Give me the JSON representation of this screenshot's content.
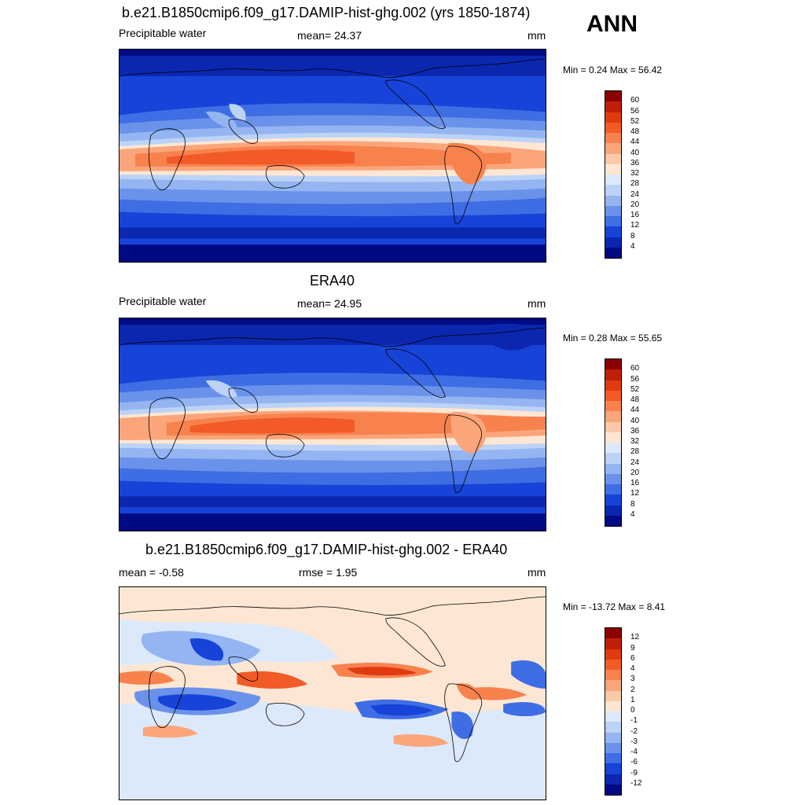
{
  "season": "ANN",
  "panels": [
    {
      "title": "b.e21.B1850cmip6.f09_g17.DAMIP-hist-ghg.002 (yrs 1850-1874)",
      "left_label": "Precipitable water",
      "center_label": "mean=  24.37",
      "units": "mm",
      "minmax": "Min =   0.24 Max =  56.42",
      "colorbar": {
        "labels": [
          "60",
          "56",
          "52",
          "48",
          "44",
          "40",
          "36",
          "32",
          "28",
          "24",
          "20",
          "16",
          "12",
          "8",
          "4"
        ],
        "colors": [
          "#8b0000",
          "#c0200a",
          "#e03a10",
          "#f25a28",
          "#f7824e",
          "#fba57a",
          "#fccaa8",
          "#fde7d4",
          "#dce9fb",
          "#bcd3f7",
          "#94b5f1",
          "#6a92ea",
          "#3f6de3",
          "#1743d8",
          "#0b27b0",
          "#000a82"
        ]
      }
    },
    {
      "title": "ERA40",
      "left_label": "Precipitable water",
      "center_label": "mean=  24.95",
      "units": "mm",
      "minmax": "Min =   0.28 Max =  55.65",
      "colorbar": {
        "labels": [
          "60",
          "56",
          "52",
          "48",
          "44",
          "40",
          "36",
          "32",
          "28",
          "24",
          "20",
          "16",
          "12",
          "8",
          "4"
        ],
        "colors": [
          "#8b0000",
          "#c0200a",
          "#e03a10",
          "#f25a28",
          "#f7824e",
          "#fba57a",
          "#fccaa8",
          "#fde7d4",
          "#dce9fb",
          "#bcd3f7",
          "#94b5f1",
          "#6a92ea",
          "#3f6de3",
          "#1743d8",
          "#0b27b0",
          "#000a82"
        ]
      }
    },
    {
      "title": "b.e21.B1850cmip6.f09_g17.DAMIP-hist-ghg.002 - ERA40",
      "left_label": "mean =  -0.58",
      "center_label": "rmse =   1.95",
      "units": "mm",
      "minmax": "Min = -13.72 Max =   8.41",
      "colorbar": {
        "labels": [
          "12",
          "9",
          "6",
          "4",
          "3",
          "2",
          "1",
          "0",
          "-1",
          "-2",
          "-3",
          "-4",
          "-6",
          "-9",
          "-12"
        ],
        "colors": [
          "#8b0000",
          "#c0200a",
          "#e03a10",
          "#f25a28",
          "#f7824e",
          "#fba57a",
          "#fccaa8",
          "#fde7d4",
          "#dce9fb",
          "#bcd3f7",
          "#94b5f1",
          "#6a92ea",
          "#3f6de3",
          "#1743d8",
          "#0b27b0",
          "#000a82"
        ]
      }
    }
  ]
}
